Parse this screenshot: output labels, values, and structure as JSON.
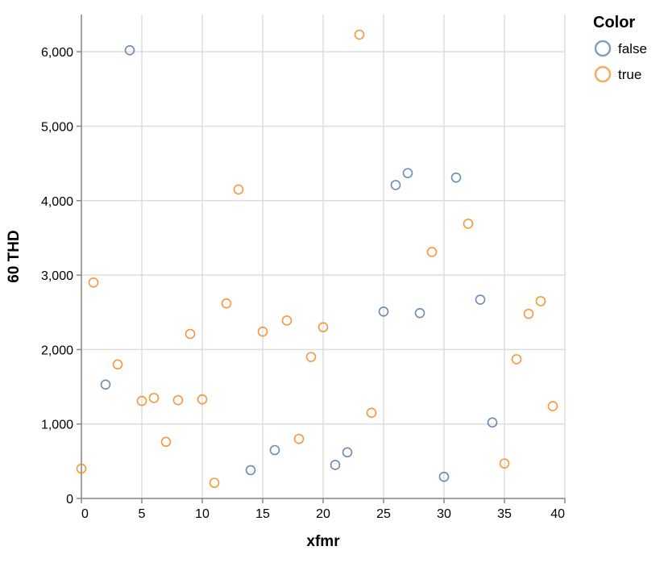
{
  "chart_data": {
    "type": "scatter",
    "title": "",
    "xlabel": "xfmr",
    "ylabel": "60 THD",
    "xlim": [
      0,
      40
    ],
    "ylim": [
      0,
      6500
    ],
    "x_ticks": [
      0,
      5,
      10,
      15,
      20,
      25,
      30,
      35,
      40
    ],
    "y_ticks": [
      0,
      1000,
      2000,
      3000,
      4000,
      5000,
      6000
    ],
    "x_tick_labels": [
      "0",
      "5",
      "10",
      "15",
      "20",
      "25",
      "30",
      "35",
      "40"
    ],
    "y_tick_labels": [
      "0",
      "1,000",
      "2,000",
      "3,000",
      "4,000",
      "5,000",
      "6,000"
    ],
    "grid": true,
    "legend": {
      "title": "Color",
      "position": "top-right",
      "entries": [
        {
          "label": "false",
          "color": "#4c78a8"
        },
        {
          "label": "true",
          "color": "#f58518"
        }
      ]
    },
    "series": [
      {
        "name": "false",
        "color": "#4c78a8",
        "points": [
          {
            "x": 2,
            "y": 1530
          },
          {
            "x": 4,
            "y": 6020
          },
          {
            "x": 14,
            "y": 380
          },
          {
            "x": 16,
            "y": 650
          },
          {
            "x": 21,
            "y": 450
          },
          {
            "x": 22,
            "y": 620
          },
          {
            "x": 25,
            "y": 2510
          },
          {
            "x": 26,
            "y": 4210
          },
          {
            "x": 27,
            "y": 4370
          },
          {
            "x": 28,
            "y": 2490
          },
          {
            "x": 30,
            "y": 290
          },
          {
            "x": 31,
            "y": 4310
          },
          {
            "x": 33,
            "y": 2670
          },
          {
            "x": 34,
            "y": 1020
          }
        ]
      },
      {
        "name": "true",
        "color": "#f58518",
        "points": [
          {
            "x": 0,
            "y": 400
          },
          {
            "x": 1,
            "y": 2900
          },
          {
            "x": 3,
            "y": 1800
          },
          {
            "x": 5,
            "y": 1310
          },
          {
            "x": 6,
            "y": 1350
          },
          {
            "x": 7,
            "y": 760
          },
          {
            "x": 8,
            "y": 1320
          },
          {
            "x": 9,
            "y": 2210
          },
          {
            "x": 10,
            "y": 1330
          },
          {
            "x": 11,
            "y": 210
          },
          {
            "x": 12,
            "y": 2620
          },
          {
            "x": 13,
            "y": 4150
          },
          {
            "x": 15,
            "y": 2240
          },
          {
            "x": 17,
            "y": 2390
          },
          {
            "x": 18,
            "y": 800
          },
          {
            "x": 19,
            "y": 1900
          },
          {
            "x": 20,
            "y": 2300
          },
          {
            "x": 23,
            "y": 6230
          },
          {
            "x": 24,
            "y": 1150
          },
          {
            "x": 29,
            "y": 3310
          },
          {
            "x": 32,
            "y": 3690
          },
          {
            "x": 35,
            "y": 470
          },
          {
            "x": 36,
            "y": 1870
          },
          {
            "x": 37,
            "y": 2480
          },
          {
            "x": 38,
            "y": 2650
          },
          {
            "x": 39,
            "y": 1240
          }
        ]
      }
    ]
  }
}
